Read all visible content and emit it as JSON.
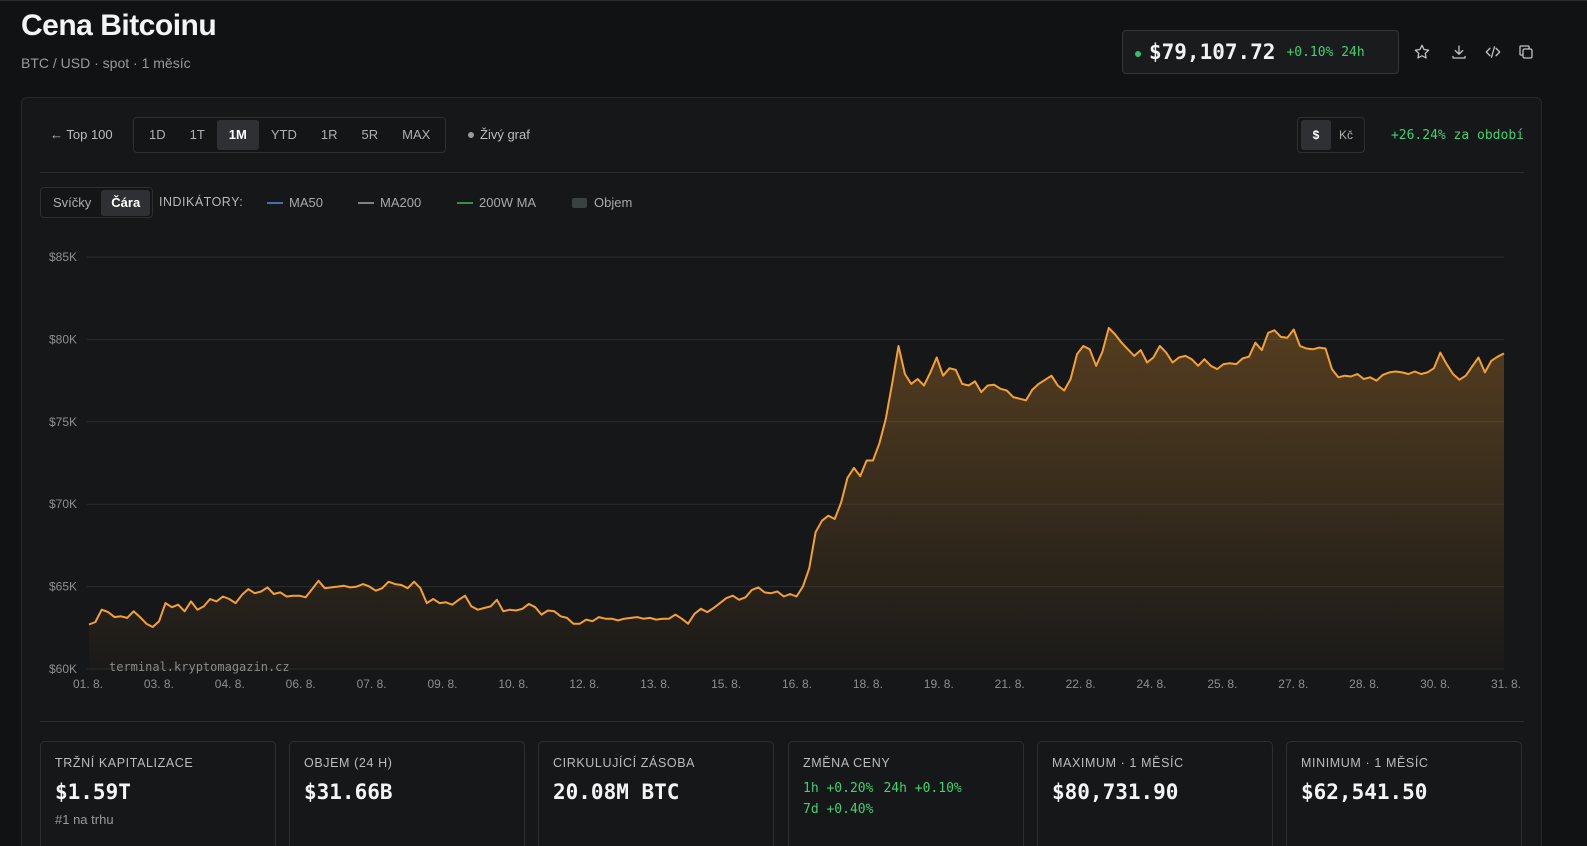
{
  "header": {
    "title": "Cena Bitcoinu",
    "subtitle": "BTC / USD · spot · 1 měsíc",
    "price": "$79,107.72",
    "change_24h": "+0.10% 24h"
  },
  "toolbar": {
    "back_label": "← Top 100",
    "ranges": [
      "1D",
      "1T",
      "1M",
      "YTD",
      "1R",
      "5R",
      "MAX"
    ],
    "active_range": "1M",
    "live_label": "Živý graf",
    "currencies": [
      "$",
      "Kč"
    ],
    "active_currency": "$",
    "period_change": "+26.24% za období"
  },
  "modes": {
    "candles": "Svíčky",
    "line": "Čára",
    "active": "Čára"
  },
  "indicators": {
    "label": "INDIKÁTORY:",
    "items": [
      {
        "name": "MA50",
        "color": "#4a6fa8"
      },
      {
        "name": "MA200",
        "color": "#7d8088"
      },
      {
        "name": "200W MA",
        "color": "#3f8a52"
      },
      {
        "name": "Objem",
        "color": "#3a4240"
      }
    ]
  },
  "watermark": "terminal.kryptomagazin.cz",
  "colors": {
    "line": "#f5a033",
    "positive": "#3fd174"
  },
  "chart_data": {
    "type": "area",
    "ylim": [
      60000,
      85000
    ],
    "y_ticks": [
      60000,
      65000,
      70000,
      75000,
      80000,
      85000
    ],
    "y_tick_labels": [
      "$60K",
      "$65K",
      "$70K",
      "$75K",
      "$80K",
      "$85K"
    ],
    "x_ticks": [
      "01. 8.",
      "03. 8.",
      "04. 8.",
      "06. 8.",
      "07. 8.",
      "09. 8.",
      "10. 8.",
      "12. 8.",
      "13. 8.",
      "15. 8.",
      "16. 8.",
      "18. 8.",
      "19. 8.",
      "21. 8.",
      "22. 8.",
      "24. 8.",
      "25. 8.",
      "27. 8.",
      "28. 8.",
      "30. 8.",
      "31. 8."
    ],
    "x_range": [
      "01. 8.",
      "31. 8."
    ],
    "series": [
      {
        "values": [
          62700,
          62850,
          63600,
          63450,
          63150,
          63200,
          63100,
          63500,
          63150,
          62750,
          62550,
          62900,
          64000,
          63750,
          63900,
          63500,
          64100,
          63600,
          63800,
          64250,
          64100,
          64400,
          64250,
          64000,
          64500,
          64850,
          64600,
          64700,
          64950,
          64550,
          64650,
          64400,
          64450,
          64450,
          64350,
          64850,
          65350,
          64900,
          64950,
          65000,
          65050,
          64950,
          65000,
          65150,
          65000,
          64750,
          64900,
          65300,
          65150,
          65100,
          64900,
          65300,
          64900,
          64000,
          64250,
          64000,
          64050,
          63900,
          64200,
          64450,
          63800,
          63600,
          63700,
          63800,
          64200,
          63500,
          63600,
          63550,
          63650,
          63950,
          63750,
          63300,
          63550,
          63500,
          63200,
          63100,
          62750,
          62750,
          63000,
          62900,
          63150,
          63050,
          63050,
          62950,
          63050,
          63100,
          63150,
          63050,
          63100,
          63000,
          63050,
          63050,
          63300,
          63050,
          62750,
          63350,
          63650,
          63450,
          63700,
          64000,
          64300,
          64450,
          64200,
          64350,
          64800,
          64950,
          64650,
          64600,
          64700,
          64400,
          64550,
          64400,
          65000,
          66100,
          68300,
          69000,
          69300,
          69100,
          70100,
          71600,
          72200,
          71700,
          72650,
          72650,
          73700,
          75150,
          77300,
          79600,
          77900,
          77300,
          77600,
          77200,
          78000,
          78900,
          77800,
          78250,
          78150,
          77300,
          77200,
          77450,
          76800,
          77200,
          77250,
          77000,
          76900,
          76500,
          76400,
          76300,
          76950,
          77300,
          77550,
          77800,
          77200,
          76900,
          77600,
          79100,
          79600,
          79400,
          78400,
          79250,
          80700,
          80300,
          79800,
          79400,
          79000,
          79350,
          78600,
          78900,
          79600,
          79200,
          78600,
          78900,
          79000,
          78800,
          78400,
          78800,
          78400,
          78200,
          78500,
          78550,
          78500,
          78850,
          78950,
          79800,
          79350,
          80400,
          80550,
          80150,
          80100,
          80600,
          79600,
          79450,
          79400,
          79500,
          79450,
          78200,
          77700,
          77800,
          77750,
          77900,
          77600,
          77700,
          77500,
          77850,
          78000,
          78050,
          78000,
          77900,
          78050,
          77900,
          78000,
          78250,
          79200,
          78500,
          77900,
          77550,
          77800,
          78350,
          78900,
          78000,
          78700,
          78950,
          79150
        ]
      }
    ]
  },
  "stats": [
    {
      "label": "Tržní kapitalizace",
      "value": "$1.59T",
      "sub": "#1 na trhu"
    },
    {
      "label": "Objem (24 h)",
      "value": "$31.66B"
    },
    {
      "label": "Cirkulující zásoba",
      "value": "20.08M BTC"
    },
    {
      "label": "Změna ceny",
      "changes": [
        {
          "period": "1h",
          "value": "+0.20%"
        },
        {
          "period": "24h",
          "value": "+0.10%"
        },
        {
          "period": "7d",
          "value": "+0.40%"
        }
      ]
    },
    {
      "label": "Maximum · 1 měsíc",
      "value": "$80,731.90"
    },
    {
      "label": "Minimum · 1 měsíc",
      "value": "$62,541.50"
    }
  ]
}
